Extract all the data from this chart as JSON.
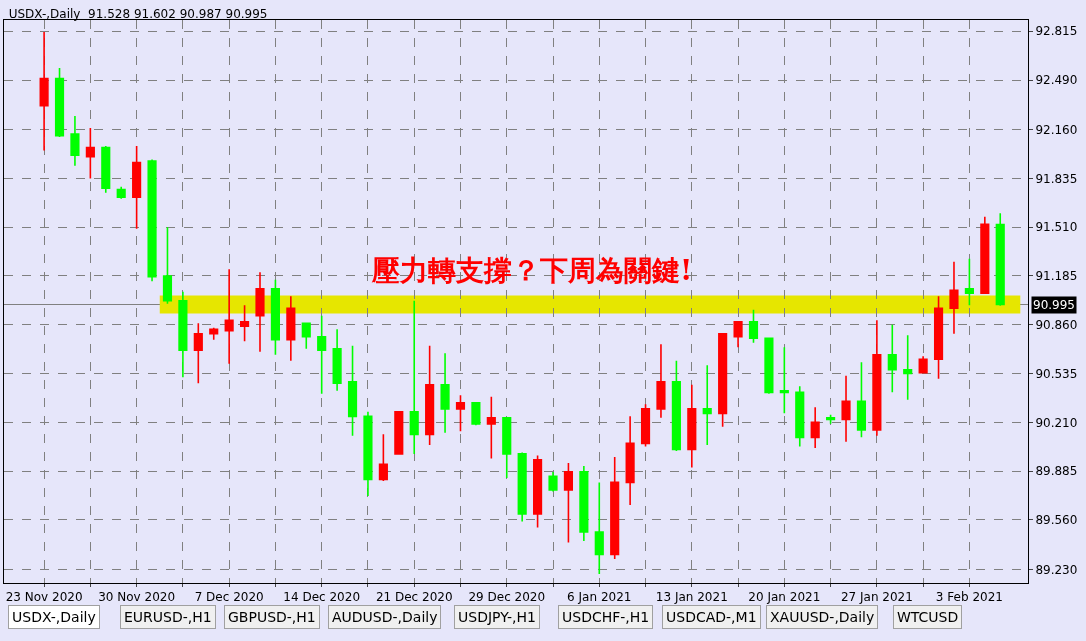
{
  "chart_data": {
    "type": "candlestick",
    "title": "USDX-,Daily  91.528 91.602 90.987 90.995",
    "categories": [
      "23 Nov 2020",
      null,
      null,
      null,
      null,
      null,
      "30 Nov 2020",
      null,
      null,
      null,
      null,
      null,
      "7 Dec 2020",
      null,
      null,
      null,
      null,
      null,
      "14 Dec 2020",
      null,
      null,
      null,
      null,
      null,
      "21 Dec 2020",
      null,
      null,
      null,
      null,
      null,
      "29 Dec 2020",
      null,
      null,
      null,
      null,
      null,
      "6 Jan 2021",
      null,
      null,
      null,
      null,
      null,
      "13 Jan 2021",
      null,
      null,
      null,
      null,
      null,
      "20 Jan 2021",
      null,
      null,
      null,
      null,
      null,
      "27 Jan 2021",
      null,
      null,
      null,
      null,
      null,
      "3 Feb 2021",
      null,
      null
    ],
    "ohlc": [
      [
        92.32,
        92.81,
        92.02,
        92.5
      ],
      [
        92.5,
        92.57,
        92.11,
        92.12
      ],
      [
        92.13,
        92.25,
        91.92,
        91.99
      ],
      [
        91.98,
        92.17,
        91.835,
        92.04
      ],
      [
        92.04,
        92.05,
        91.74,
        91.77
      ],
      [
        91.76,
        91.78,
        91.7,
        91.71
      ],
      [
        91.71,
        92.05,
        91.5,
        91.94
      ],
      [
        91.95,
        91.96,
        91.15,
        91.18
      ],
      [
        91.185,
        91.51,
        91.0,
        91.02
      ],
      [
        91.02,
        91.08,
        90.51,
        90.69
      ],
      [
        90.69,
        90.87,
        90.47,
        90.8
      ],
      [
        90.8,
        90.84,
        90.76,
        90.83
      ],
      [
        90.82,
        91.23,
        90.6,
        90.89
      ],
      [
        90.85,
        90.99,
        90.75,
        90.88
      ],
      [
        90.92,
        91.21,
        90.68,
        91.1
      ],
      [
        91.1,
        91.16,
        90.66,
        90.76
      ],
      [
        90.76,
        91.05,
        90.62,
        90.97
      ],
      [
        90.87,
        90.87,
        90.7,
        90.78
      ],
      [
        90.78,
        90.92,
        90.4,
        90.69
      ],
      [
        90.7,
        90.83,
        90.42,
        90.47
      ],
      [
        90.48,
        90.72,
        90.12,
        90.25
      ],
      [
        90.25,
        90.28,
        89.72,
        89.83
      ],
      [
        89.83,
        90.13,
        89.82,
        89.93
      ],
      [
        90.0,
        90.28,
        90.0,
        90.28
      ],
      [
        90.28,
        91.02,
        90.0,
        90.13
      ],
      [
        90.13,
        90.72,
        90.06,
        90.46
      ],
      [
        90.46,
        90.67,
        90.14,
        90.3
      ],
      [
        90.3,
        90.39,
        90.15,
        90.34
      ],
      [
        90.34,
        90.34,
        90.19,
        90.2
      ],
      [
        90.2,
        90.38,
        89.97,
        90.24
      ],
      [
        90.24,
        90.24,
        89.84,
        90.0
      ],
      [
        90.0,
        90.01,
        89.55,
        89.6
      ],
      [
        89.6,
        89.99,
        89.51,
        89.96
      ],
      [
        89.85,
        89.88,
        89.75,
        89.76
      ],
      [
        89.76,
        89.94,
        89.41,
        89.88
      ],
      [
        89.88,
        89.92,
        89.42,
        89.48
      ],
      [
        89.48,
        89.81,
        89.2,
        89.33
      ],
      [
        89.33,
        89.98,
        89.3,
        89.81
      ],
      [
        89.81,
        90.25,
        89.66,
        90.07
      ],
      [
        90.07,
        90.33,
        90.05,
        90.3
      ],
      [
        90.3,
        90.73,
        90.24,
        90.48
      ],
      [
        90.48,
        90.62,
        90.02,
        90.03
      ],
      [
        90.03,
        90.46,
        89.91,
        90.3
      ],
      [
        90.3,
        90.59,
        90.06,
        90.27
      ],
      [
        90.27,
        90.8,
        90.18,
        90.8
      ],
      [
        90.78,
        90.88,
        90.71,
        90.88
      ],
      [
        90.88,
        90.96,
        90.74,
        90.77
      ],
      [
        90.77,
        90.77,
        90.4,
        90.41
      ],
      [
        90.42,
        90.71,
        90.27,
        90.41
      ],
      [
        90.41,
        90.45,
        90.05,
        90.11
      ],
      [
        90.11,
        90.31,
        90.04,
        90.21
      ],
      [
        90.24,
        90.26,
        90.2,
        90.23
      ],
      [
        90.23,
        90.52,
        90.08,
        90.35
      ],
      [
        90.35,
        90.61,
        90.11,
        90.16
      ],
      [
        90.16,
        90.89,
        90.12,
        90.66
      ],
      [
        90.66,
        90.86,
        90.41,
        90.56
      ],
      [
        90.56,
        90.79,
        90.36,
        90.535
      ],
      [
        90.54,
        90.65,
        90.54,
        90.63
      ],
      [
        90.63,
        91.05,
        90.5,
        90.97
      ],
      [
        90.97,
        91.28,
        90.8,
        91.09
      ],
      [
        91.1,
        91.3,
        90.99,
        91.07
      ],
      [
        91.07,
        91.58,
        91.07,
        91.53
      ],
      [
        91.528,
        91.602,
        90.987,
        90.995
      ]
    ],
    "colors": [
      "#ff0000",
      "#00ff00",
      "#00ff00",
      "#ff0000",
      "#00ff00",
      "#00ff00",
      "#ff0000",
      "#00ff00",
      "#00ff00",
      "#00ff00",
      "#ff0000",
      "#ff0000",
      "#ff0000",
      "#ff0000",
      "#ff0000",
      "#00ff00",
      "#ff0000",
      "#00ff00",
      "#00ff00",
      "#00ff00",
      "#00ff00",
      "#00ff00",
      "#ff0000",
      "#ff0000",
      "#00ff00",
      "#ff0000",
      "#00ff00",
      "#ff0000",
      "#00ff00",
      "#ff0000",
      "#00ff00",
      "#00ff00",
      "#ff0000",
      "#00ff00",
      "#ff0000",
      "#00ff00",
      "#00ff00",
      "#ff0000",
      "#ff0000",
      "#ff0000",
      "#ff0000",
      "#00ff00",
      "#ff0000",
      "#00ff00",
      "#ff0000",
      "#ff0000",
      "#00ff00",
      "#00ff00",
      "#00ff00",
      "#00ff00",
      "#ff0000",
      "#00ff00",
      "#ff0000",
      "#00ff00",
      "#ff0000",
      "#00ff00",
      "#00ff00",
      "#ff0000",
      "#ff0000",
      "#ff0000",
      "#00ff00",
      "#ff0000",
      "#00ff00"
    ],
    "ylim": [
      89.14,
      92.89
    ],
    "yticks": [
      {
        "value": 89.23,
        "label": "89.230"
      },
      {
        "value": 89.56,
        "label": "89.560"
      },
      89.885,
      {
        "value": 90.21,
        "label": "90.210"
      },
      90.535,
      {
        "value": 90.86,
        "label": "90.860"
      },
      91.185,
      {
        "value": 91.51,
        "label": "91.510"
      },
      91.835,
      {
        "value": 92.16,
        "label": "92.160"
      },
      {
        "value": 92.49,
        "label": "92.490"
      },
      92.815
    ],
    "grid": true,
    "legend": false,
    "ref_lines": [
      {
        "axis": "y",
        "value": 90.995,
        "label": "90.995",
        "color": "#808080"
      }
    ],
    "bands": [
      {
        "axis": "y",
        "from": 90.935,
        "to": 91.055,
        "color": "#e6e600"
      }
    ],
    "annotations": [
      "壓力轉支撐？下周為關鍵!",
      "USDX-,Daily",
      "EURUSD-,H1",
      "GBPUSD-,H1",
      "AUDUSD-,Daily",
      "USDJPY-,H1",
      "USDCHF-,H1",
      "USDCAD-,M1",
      "XAUUSD-,Daily",
      "WTCUSD"
    ]
  }
}
